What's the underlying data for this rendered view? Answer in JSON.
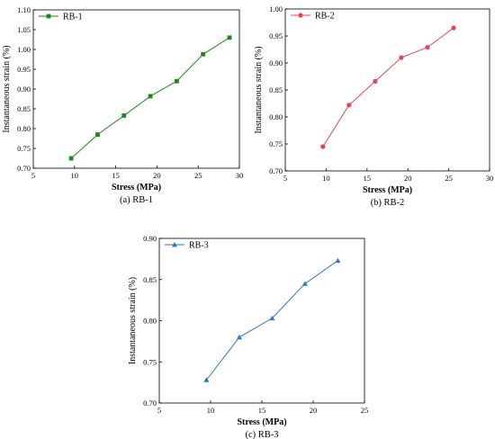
{
  "chart_data": [
    {
      "type": "line",
      "caption": "(a) RB-1",
      "xlabel": "Stress (MPa)",
      "ylabel": "Instantaneous strain (%)",
      "xlim": [
        5,
        30
      ],
      "ylim": [
        0.7,
        1.1
      ],
      "xticks": [
        "5",
        "10",
        "15",
        "20",
        "25",
        "30"
      ],
      "yticks": [
        "0.70",
        "0.75",
        "0.80",
        "0.85",
        "0.90",
        "0.95",
        "1.00",
        "1.05",
        "1.10"
      ],
      "legend_position": "top-left",
      "marker": "square",
      "series": [
        {
          "name": "RB-1",
          "color": "#1a8a1a",
          "x": [
            9.6,
            12.8,
            16.0,
            19.2,
            22.4,
            25.6,
            28.8
          ],
          "y": [
            0.725,
            0.785,
            0.833,
            0.882,
            0.92,
            0.988,
            1.03
          ]
        }
      ]
    },
    {
      "type": "line",
      "caption": "(b) RB-2",
      "xlabel": "Stress (MPa)",
      "ylabel": "Instantaneous strain (%)",
      "xlim": [
        5,
        30
      ],
      "ylim": [
        0.7,
        1.0
      ],
      "xticks": [
        "5",
        "10",
        "15",
        "20",
        "25",
        "30"
      ],
      "yticks": [
        "0.70",
        "0.75",
        "0.80",
        "0.85",
        "0.90",
        "0.95",
        "1.00"
      ],
      "legend_position": "top-left",
      "marker": "circle",
      "series": [
        {
          "name": "RB-2",
          "color": "#e8434f",
          "x": [
            9.6,
            12.8,
            16.0,
            19.2,
            22.4,
            25.6
          ],
          "y": [
            0.745,
            0.822,
            0.866,
            0.91,
            0.929,
            0.965
          ]
        }
      ]
    },
    {
      "type": "line",
      "caption": "(c) RB-3",
      "xlabel": "Stress (MPa)",
      "ylabel": "Instantaneous strain (%)",
      "xlim": [
        5,
        25
      ],
      "ylim": [
        0.7,
        0.9
      ],
      "xticks": [
        "5",
        "10",
        "15",
        "20",
        "25"
      ],
      "yticks": [
        "0.70",
        "0.75",
        "0.80",
        "0.85",
        "0.90"
      ],
      "legend_position": "top-left",
      "marker": "triangle",
      "series": [
        {
          "name": "RB-3",
          "color": "#2f74c8",
          "x": [
            9.6,
            12.8,
            16.0,
            19.2,
            22.4
          ],
          "y": [
            0.728,
            0.78,
            0.803,
            0.845,
            0.873
          ]
        }
      ]
    }
  ]
}
